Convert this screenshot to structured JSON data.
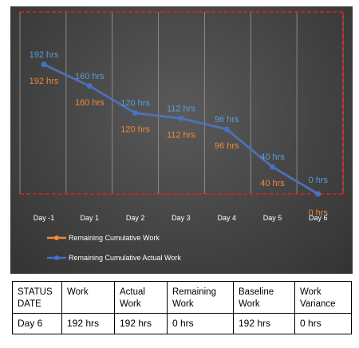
{
  "chart_data": {
    "type": "line",
    "categories": [
      "Day -1",
      "Day 1",
      "Day 2",
      "Day 3",
      "Day 4",
      "Day 5",
      "Day 6"
    ],
    "ylim": [
      0,
      200
    ],
    "grid": true,
    "legend_position": "bottom-left",
    "series": [
      {
        "name": "Remaining Cumulative Work",
        "values": [
          192,
          160,
          120,
          112,
          96,
          40,
          0
        ],
        "labels": [
          "192 hrs",
          "160 hrs",
          "120 hrs",
          "112 hrs",
          "96 hrs",
          "40 hrs",
          "0 hrs"
        ],
        "color": "#f0883a"
      },
      {
        "name": "Remaining Cumulative Actual Work",
        "values": [
          192,
          160,
          120,
          112,
          96,
          40,
          0
        ],
        "labels": [
          "192 hrs",
          "160 hrs",
          "120 hrs",
          "112 hrs",
          "96 hrs",
          "40 hrs",
          "0 hrs"
        ],
        "color": "#4472c4"
      }
    ],
    "status_line_color": "#e02020"
  },
  "table": {
    "headers": [
      [
        "STATUS",
        "DATE"
      ],
      [
        "Work"
      ],
      [
        "Actual",
        "Work"
      ],
      [
        "Remaining",
        "Work"
      ],
      [
        "Baseline",
        "Work"
      ],
      [
        "Work",
        "Variance"
      ]
    ],
    "row": [
      "Day 6",
      "192 hrs",
      "192 hrs",
      "0 hrs",
      "192 hrs",
      "0 hrs"
    ]
  }
}
